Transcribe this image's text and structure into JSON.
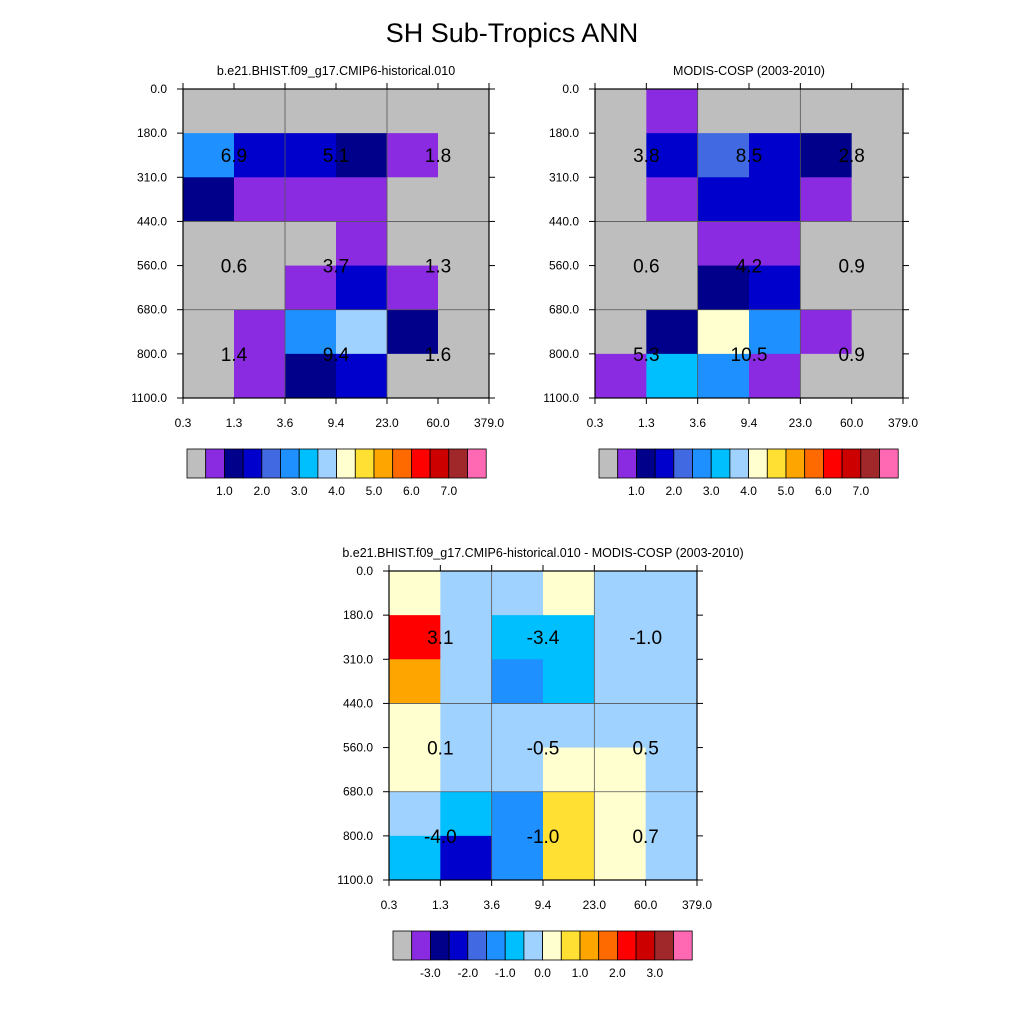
{
  "title": "SH Sub-Tropics ANN",
  "palettes": {
    "abs": [
      "#bebebe",
      "#8a2be2",
      "#00008b",
      "#0000cd",
      "#4169e1",
      "#1e90ff",
      "#00bfff",
      "#a0d2ff",
      "#ffffd0",
      "#ffe033",
      "#ffa500",
      "#ff6a00",
      "#ff0000",
      "#cd0000",
      "#a0282b",
      "#ff69b4"
    ],
    "diff": [
      "#bebebe",
      "#8a2be2",
      "#00008b",
      "#0000cd",
      "#4169e1",
      "#1e90ff",
      "#00bfff",
      "#a0d2ff",
      "#ffffd0",
      "#ffe033",
      "#ffa500",
      "#ff6a00",
      "#ff0000",
      "#cd0000",
      "#a0282b",
      "#ff69b4"
    ]
  },
  "chart_data": [
    {
      "id": "model",
      "type": "heatmap",
      "title": "b.e21.BHIST.f09_g17.CMIP6-historical.010",
      "x_tick_labels": [
        "0.3",
        "1.3",
        "3.6",
        "9.4",
        "23.0",
        "60.0",
        "379.0"
      ],
      "y_tick_labels": [
        "0.0",
        "180.0",
        "310.0",
        "440.0",
        "560.0",
        "680.0",
        "800.0",
        "1100.0"
      ],
      "cell_color_index": [
        [
          0,
          0,
          0,
          0,
          0,
          0
        ],
        [
          5,
          3,
          3,
          2,
          1,
          0
        ],
        [
          2,
          1,
          1,
          1,
          0,
          0
        ],
        [
          0,
          0,
          0,
          1,
          0,
          0
        ],
        [
          0,
          0,
          1,
          3,
          1,
          0
        ],
        [
          0,
          1,
          5,
          7,
          2,
          0
        ],
        [
          0,
          1,
          2,
          3,
          0,
          0
        ]
      ],
      "box_values": [
        [
          "6.9",
          "5.1",
          "1.8"
        ],
        [
          "0.6",
          "3.7",
          "1.3"
        ],
        [
          "1.4",
          "9.4",
          "1.6"
        ]
      ],
      "colorbar": {
        "palette": "abs",
        "labels": [
          "1.0",
          "2.0",
          "3.0",
          "4.0",
          "5.0",
          "6.0",
          "7.0"
        ]
      }
    },
    {
      "id": "obs",
      "type": "heatmap",
      "title": "MODIS-COSP (2003-2010)",
      "x_tick_labels": [
        "0.3",
        "1.3",
        "3.6",
        "9.4",
        "23.0",
        "60.0",
        "379.0"
      ],
      "y_tick_labels": [
        "0.0",
        "180.0",
        "310.0",
        "440.0",
        "560.0",
        "680.0",
        "800.0",
        "1100.0"
      ],
      "cell_color_index": [
        [
          0,
          1,
          0,
          0,
          0,
          0
        ],
        [
          0,
          3,
          4,
          3,
          2,
          0
        ],
        [
          0,
          1,
          3,
          3,
          1,
          0
        ],
        [
          0,
          0,
          1,
          1,
          0,
          0
        ],
        [
          0,
          0,
          2,
          3,
          0,
          0
        ],
        [
          0,
          2,
          8,
          5,
          1,
          0
        ],
        [
          1,
          6,
          5,
          1,
          0,
          0
        ]
      ],
      "box_values": [
        [
          "3.8",
          "8.5",
          "2.8"
        ],
        [
          "0.6",
          "4.2",
          "0.9"
        ],
        [
          "5.3",
          "10.5",
          "0.9"
        ]
      ],
      "colorbar": {
        "palette": "abs",
        "labels": [
          "1.0",
          "2.0",
          "3.0",
          "4.0",
          "5.0",
          "6.0",
          "7.0"
        ]
      }
    },
    {
      "id": "diff",
      "type": "heatmap",
      "title": "b.e21.BHIST.f09_g17.CMIP6-historical.010 - MODIS-COSP (2003-2010)",
      "x_tick_labels": [
        "0.3",
        "1.3",
        "3.6",
        "9.4",
        "23.0",
        "60.0",
        "379.0"
      ],
      "y_tick_labels": [
        "0.0",
        "180.0",
        "310.0",
        "440.0",
        "560.0",
        "680.0",
        "800.0",
        "1100.0"
      ],
      "cell_color_index": [
        [
          8,
          7,
          7,
          8,
          7,
          7
        ],
        [
          12,
          7,
          6,
          6,
          7,
          7
        ],
        [
          10,
          7,
          5,
          6,
          7,
          7
        ],
        [
          8,
          7,
          7,
          7,
          7,
          7
        ],
        [
          8,
          7,
          7,
          8,
          8,
          7
        ],
        [
          7,
          6,
          5,
          9,
          8,
          7
        ],
        [
          6,
          3,
          5,
          9,
          8,
          7
        ]
      ],
      "box_values": [
        [
          "3.1",
          "-3.4",
          "-1.0"
        ],
        [
          "0.1",
          "-0.5",
          "0.5"
        ],
        [
          "-4.0",
          "-1.0",
          "0.7"
        ]
      ],
      "colorbar": {
        "palette": "diff",
        "labels": [
          "-3.0",
          "-2.0",
          "-1.0",
          "0.0",
          "1.0",
          "2.0",
          "3.0"
        ]
      }
    }
  ]
}
